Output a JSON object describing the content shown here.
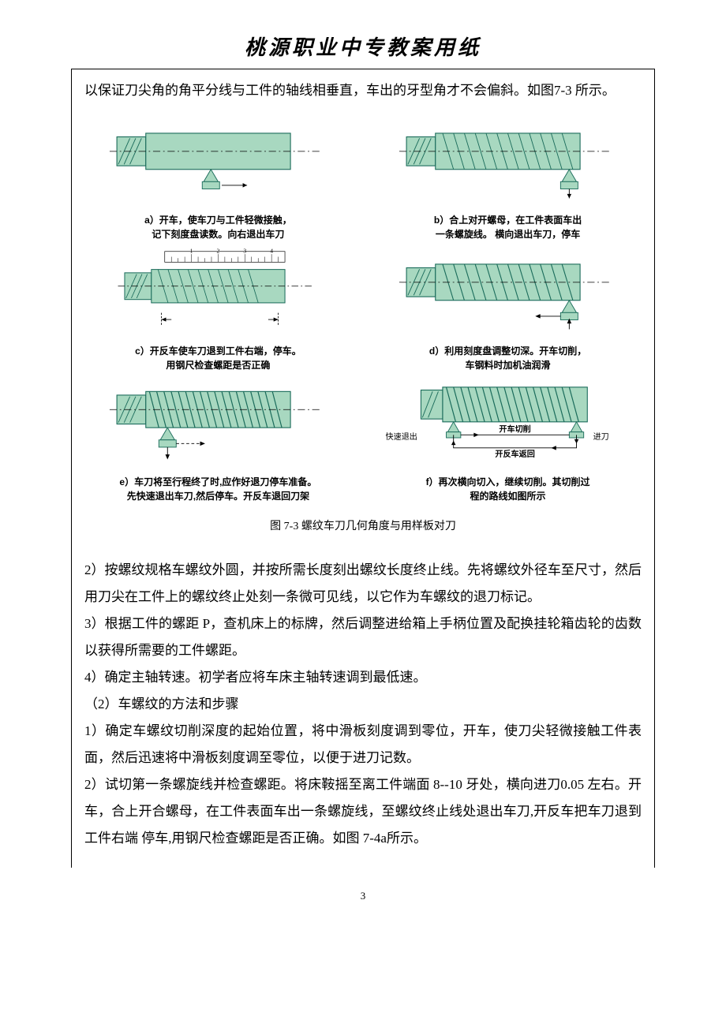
{
  "header": {
    "title": "桃源职业中专教案用纸"
  },
  "intro": {
    "p1": "以保证刀尖角的角平分线与工件的轴线相垂直，车出的牙型角才不会偏斜。如图7-3 所示。"
  },
  "figure": {
    "caption": "图 7-3 螺纹车刀几何角度与用样板对刀",
    "panels": {
      "a": "a）开车，使车刀与工件轻微接触，\n记下刻度盘读数。向右退出车刀",
      "b": "b）合上对开螺母，在工件表面车出\n一条螺旋线。 横向退出车刀，停车",
      "c": "c）开反车使车刀退到工件右端，停车。\n用钢尺检查螺距是否正确",
      "d": "d）利用刻度盘调整切深。开车切削，\n车钢料时加机油润滑",
      "e": "e）车刀将至行程终了时,应作好退刀停车准备。\n先快速退出车刀,然后停车。开反车退回刀架",
      "f": "f）再次横向切入，继续切削。其切削过\n程的路线如图所示",
      "f_labels": {
        "left": "快速退出",
        "mid_top": "开车切削",
        "mid_bottom": "开反车返回",
        "right": "进刀"
      },
      "ruler": {
        "n1": "1",
        "n2": "2",
        "n3": "3",
        "n4": "4"
      }
    },
    "colors": {
      "fill": "#a8d8c0",
      "stroke": "#1a6b5a",
      "hatch": "#1a6b5a",
      "black": "#000000"
    }
  },
  "body": {
    "p2": "2）按螺纹规格车螺纹外圆，并按所需长度刻出螺纹长度终止线。先将螺纹外径车至尺寸，然后用刀尖在工件上的螺纹终止处刻一条微可见线，以它作为车螺纹的退刀标记。",
    "p3": " 3）根据工件的螺距 P，查机床上的标牌，然后调整进给箱上手柄位置及配换挂轮箱齿轮的齿数以获得所需要的工件螺距。",
    "p4": "4）确定主轴转速。初学者应将车床主轴转速调到最低速。",
    "p5": "（2）车螺纹的方法和步骤",
    "p6": "1）确定车螺纹切削深度的起始位置，将中滑板刻度调到零位，开车，使刀尖轻微接触工件表面，然后迅速将中滑板刻度调至零位，以便于进刀记数。",
    "p7": "2）试切第一条螺旋线并检查螺距。将床鞍摇至离工件端面 8--10 牙处，横向进刀0.05 左右。开车，合上开合螺母，在工件表面车出一条螺旋线，至螺纹终止线处退出车刀,开反车把车刀退到工件右端 停车,用钢尺检查螺距是否正确。如图 7-4a所示。"
  },
  "pageNumber": "3"
}
